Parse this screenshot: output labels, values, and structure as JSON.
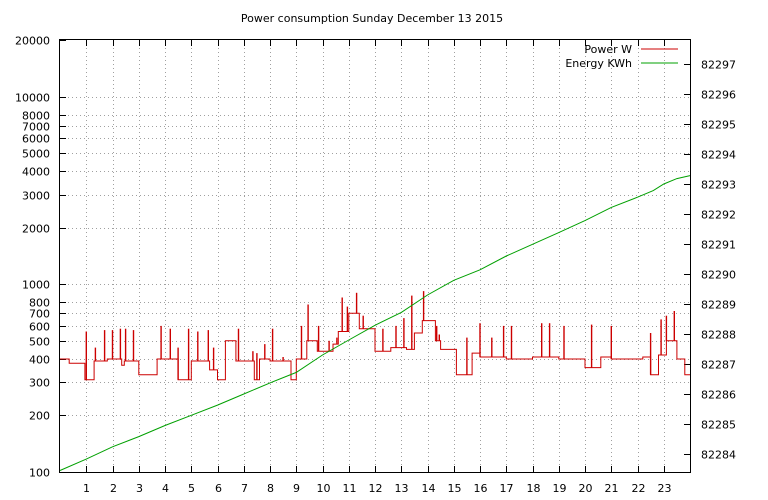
{
  "chart_data": {
    "type": "line",
    "title": "Power consumption Sunday December 13 2015",
    "xlabel": "",
    "ylabel": "",
    "y2label": "",
    "xlim": [
      0,
      24
    ],
    "x_ticks": [
      1,
      2,
      3,
      4,
      5,
      6,
      7,
      8,
      9,
      10,
      11,
      12,
      13,
      14,
      15,
      16,
      17,
      18,
      19,
      20,
      21,
      22,
      23
    ],
    "ylim": [
      100,
      20000
    ],
    "y_scale": "log",
    "y_ticks": [
      100,
      200,
      300,
      400,
      500,
      600,
      700,
      800,
      1000,
      2000,
      3000,
      4000,
      5000,
      6000,
      7000,
      8000,
      10000,
      20000
    ],
    "y2lim": [
      82283.4,
      82297.8
    ],
    "y2_ticks": [
      82284,
      82285,
      82286,
      82287,
      82288,
      82289,
      82290,
      82291,
      82292,
      82293,
      82294,
      82295,
      82296,
      82297
    ],
    "grid": true,
    "legend_position": "top-right",
    "series": [
      {
        "name": "Power W",
        "axis": "left",
        "color": "#cc0000",
        "x": [
          0,
          0.35,
          0.35,
          0.95,
          0.95,
          1.3,
          1.3,
          1.45,
          1.45,
          1.8,
          1.8,
          2.35,
          2.35,
          2.45,
          2.45,
          3.0,
          3.0,
          3.7,
          3.7,
          4.0,
          4.0,
          4.5,
          4.5,
          5.0,
          5.0,
          5.7,
          5.7,
          6.0,
          6.0,
          6.3,
          6.3,
          6.7,
          6.7,
          7.4,
          7.4,
          7.6,
          7.6,
          8.0,
          8.0,
          8.6,
          8.6,
          8.8,
          8.8,
          9.0,
          9.0,
          9.4,
          9.4,
          9.8,
          9.8,
          10.4,
          10.4,
          10.6,
          10.6,
          11.0,
          11.0,
          11.4,
          11.4,
          12.0,
          12.0,
          12.6,
          12.6,
          13.2,
          13.2,
          13.5,
          13.5,
          13.8,
          13.8,
          14.3,
          14.3,
          14.5,
          14.5,
          15.1,
          15.1,
          15.7,
          15.7,
          16.0,
          16.0,
          16.6,
          16.6,
          17.0,
          17.0,
          18.0,
          18.0,
          18.2,
          18.2,
          19.0,
          19.0,
          19.8,
          19.8,
          20.0,
          20.0,
          20.6,
          20.6,
          21.0,
          21.0,
          22.2,
          22.2,
          22.5,
          22.5,
          22.8,
          22.8,
          23.1,
          23.1,
          23.5,
          23.5,
          23.8,
          23.8,
          24.0
        ],
        "y": [
          400,
          400,
          380,
          380,
          310,
          310,
          390,
          390,
          390,
          390,
          400,
          400,
          370,
          370,
          390,
          390,
          330,
          330,
          400,
          400,
          400,
          400,
          310,
          310,
          390,
          390,
          350,
          350,
          310,
          310,
          500,
          500,
          390,
          390,
          310,
          310,
          400,
          400,
          390,
          390,
          390,
          390,
          310,
          310,
          400,
          400,
          500,
          500,
          440,
          440,
          480,
          480,
          560,
          560,
          700,
          700,
          580,
          580,
          440,
          440,
          460,
          460,
          450,
          450,
          550,
          550,
          640,
          640,
          500,
          500,
          450,
          450,
          330,
          330,
          430,
          430,
          410,
          410,
          410,
          410,
          400,
          400,
          410,
          410,
          410,
          410,
          400,
          400,
          400,
          400,
          360,
          360,
          410,
          410,
          400,
          400,
          410,
          410,
          330,
          330,
          420,
          420,
          500,
          500,
          400,
          400,
          330,
          330
        ],
        "spikes": [
          [
            1.0,
            560
          ],
          [
            1.35,
            460
          ],
          [
            1.7,
            570
          ],
          [
            2.0,
            570
          ],
          [
            2.3,
            580
          ],
          [
            2.5,
            580
          ],
          [
            2.8,
            570
          ],
          [
            3.85,
            600
          ],
          [
            4.2,
            580
          ],
          [
            4.5,
            460
          ],
          [
            4.9,
            580
          ],
          [
            5.25,
            560
          ],
          [
            5.65,
            570
          ],
          [
            5.85,
            460
          ],
          [
            6.6,
            500
          ],
          [
            6.8,
            580
          ],
          [
            7.35,
            440
          ],
          [
            7.5,
            430
          ],
          [
            7.8,
            480
          ],
          [
            8.1,
            580
          ],
          [
            8.5,
            410
          ],
          [
            8.75,
            390
          ],
          [
            9.2,
            600
          ],
          [
            9.45,
            780
          ],
          [
            9.85,
            600
          ],
          [
            10.25,
            500
          ],
          [
            10.55,
            520
          ],
          [
            10.75,
            850
          ],
          [
            10.95,
            760
          ],
          [
            11.3,
            900
          ],
          [
            11.55,
            680
          ],
          [
            12.3,
            580
          ],
          [
            12.8,
            600
          ],
          [
            13.1,
            660
          ],
          [
            13.4,
            870
          ],
          [
            13.85,
            920
          ],
          [
            14.35,
            600
          ],
          [
            14.45,
            540
          ],
          [
            15.5,
            520
          ],
          [
            16.0,
            620
          ],
          [
            16.45,
            520
          ],
          [
            16.9,
            600
          ],
          [
            17.2,
            600
          ],
          [
            18.35,
            620
          ],
          [
            18.65,
            620
          ],
          [
            19.2,
            600
          ],
          [
            20.25,
            610
          ],
          [
            21.0,
            600
          ],
          [
            22.5,
            550
          ],
          [
            22.9,
            650
          ],
          [
            23.1,
            680
          ],
          [
            23.4,
            720
          ]
        ]
      },
      {
        "name": "Energy KWh",
        "axis": "right",
        "color": "#00a000",
        "x": [
          0,
          1,
          2,
          3,
          4,
          5,
          6,
          7,
          8,
          9,
          10,
          11,
          12,
          13,
          14,
          15,
          16,
          17,
          18,
          19,
          20,
          21,
          22,
          22.6,
          23,
          23.5,
          24
        ],
        "y": [
          82283.45,
          82283.83,
          82284.24,
          82284.58,
          82284.95,
          82285.29,
          82285.63,
          82286.0,
          82286.37,
          82286.72,
          82287.3,
          82287.8,
          82288.29,
          82288.72,
          82289.3,
          82289.79,
          82290.14,
          82290.6,
          82290.99,
          82291.38,
          82291.78,
          82292.22,
          82292.56,
          82292.78,
          82293.0,
          82293.18,
          82293.28
        ]
      }
    ]
  }
}
